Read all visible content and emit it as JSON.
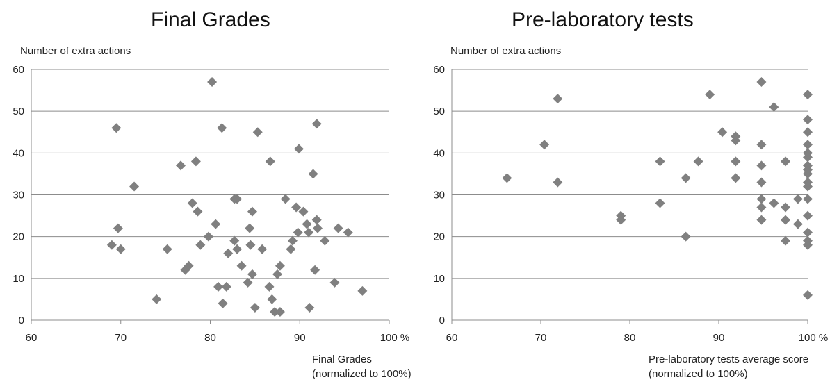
{
  "chart_data": [
    {
      "type": "scatter",
      "title": "Final Grades",
      "ylabel": "Number of extra actions",
      "xlabel_lines": [
        "Final Grades",
        "(normalized to 100%)"
      ],
      "xlim": [
        60,
        100
      ],
      "ylim": [
        0,
        60
      ],
      "x_ticks": [
        "60",
        "70",
        "80",
        "90",
        "100 %"
      ],
      "y_ticks": [
        "0",
        "10",
        "20",
        "30",
        "40",
        "50",
        "60"
      ],
      "grid": "horizontal",
      "marker": "diamond",
      "color": "#808080",
      "points": [
        {
          "x": 69.5,
          "y": 46
        },
        {
          "x": 69.7,
          "y": 22
        },
        {
          "x": 69.0,
          "y": 18
        },
        {
          "x": 70.0,
          "y": 17
        },
        {
          "x": 71.5,
          "y": 32
        },
        {
          "x": 74.0,
          "y": 5
        },
        {
          "x": 75.2,
          "y": 17
        },
        {
          "x": 76.7,
          "y": 37
        },
        {
          "x": 77.2,
          "y": 12
        },
        {
          "x": 77.6,
          "y": 13
        },
        {
          "x": 78.0,
          "y": 28
        },
        {
          "x": 78.4,
          "y": 38
        },
        {
          "x": 78.6,
          "y": 26
        },
        {
          "x": 78.9,
          "y": 18
        },
        {
          "x": 79.8,
          "y": 20
        },
        {
          "x": 80.2,
          "y": 57
        },
        {
          "x": 80.6,
          "y": 23
        },
        {
          "x": 80.9,
          "y": 8
        },
        {
          "x": 81.3,
          "y": 46
        },
        {
          "x": 81.4,
          "y": 4
        },
        {
          "x": 81.8,
          "y": 8
        },
        {
          "x": 82.0,
          "y": 16
        },
        {
          "x": 82.7,
          "y": 29
        },
        {
          "x": 82.7,
          "y": 19
        },
        {
          "x": 83.0,
          "y": 29
        },
        {
          "x": 83.0,
          "y": 17
        },
        {
          "x": 83.5,
          "y": 13
        },
        {
          "x": 84.2,
          "y": 9
        },
        {
          "x": 84.4,
          "y": 22
        },
        {
          "x": 84.5,
          "y": 18
        },
        {
          "x": 84.7,
          "y": 26
        },
        {
          "x": 84.7,
          "y": 11
        },
        {
          "x": 85.0,
          "y": 3
        },
        {
          "x": 85.3,
          "y": 45
        },
        {
          "x": 85.8,
          "y": 17
        },
        {
          "x": 86.6,
          "y": 8
        },
        {
          "x": 86.7,
          "y": 38
        },
        {
          "x": 86.9,
          "y": 5
        },
        {
          "x": 87.2,
          "y": 2
        },
        {
          "x": 87.5,
          "y": 11
        },
        {
          "x": 87.8,
          "y": 13
        },
        {
          "x": 87.8,
          "y": 2
        },
        {
          "x": 88.4,
          "y": 29
        },
        {
          "x": 89.0,
          "y": 17
        },
        {
          "x": 89.2,
          "y": 19
        },
        {
          "x": 89.6,
          "y": 27
        },
        {
          "x": 89.8,
          "y": 21
        },
        {
          "x": 89.9,
          "y": 41
        },
        {
          "x": 90.4,
          "y": 26
        },
        {
          "x": 90.8,
          "y": 23
        },
        {
          "x": 91.0,
          "y": 21
        },
        {
          "x": 91.1,
          "y": 3
        },
        {
          "x": 91.5,
          "y": 35
        },
        {
          "x": 91.7,
          "y": 12
        },
        {
          "x": 91.9,
          "y": 24
        },
        {
          "x": 91.9,
          "y": 47
        },
        {
          "x": 92.0,
          "y": 22
        },
        {
          "x": 92.8,
          "y": 19
        },
        {
          "x": 93.9,
          "y": 9
        },
        {
          "x": 94.3,
          "y": 22
        },
        {
          "x": 95.4,
          "y": 21
        },
        {
          "x": 97.0,
          "y": 7
        }
      ]
    },
    {
      "type": "scatter",
      "title": "Pre-laboratory tests",
      "ylabel": "Number of extra actions",
      "xlabel_lines": [
        "Pre-laboratory tests average score",
        "(normalized to 100%)"
      ],
      "xlim": [
        60,
        100
      ],
      "ylim": [
        0,
        60
      ],
      "x_ticks": [
        "60",
        "70",
        "80",
        "90",
        "100 %"
      ],
      "y_ticks": [
        "0",
        "10",
        "20",
        "30",
        "40",
        "50",
        "60"
      ],
      "grid": "horizontal",
      "marker": "diamond",
      "color": "#808080",
      "points": [
        {
          "x": 66.2,
          "y": 34
        },
        {
          "x": 70.4,
          "y": 42
        },
        {
          "x": 71.9,
          "y": 53
        },
        {
          "x": 71.9,
          "y": 33
        },
        {
          "x": 79.0,
          "y": 25
        },
        {
          "x": 79.0,
          "y": 24
        },
        {
          "x": 83.4,
          "y": 38
        },
        {
          "x": 83.4,
          "y": 28
        },
        {
          "x": 86.3,
          "y": 34
        },
        {
          "x": 86.3,
          "y": 20
        },
        {
          "x": 87.7,
          "y": 38
        },
        {
          "x": 89.0,
          "y": 54
        },
        {
          "x": 90.4,
          "y": 45
        },
        {
          "x": 91.9,
          "y": 44
        },
        {
          "x": 91.9,
          "y": 43
        },
        {
          "x": 91.9,
          "y": 38
        },
        {
          "x": 91.9,
          "y": 34
        },
        {
          "x": 94.8,
          "y": 57
        },
        {
          "x": 94.8,
          "y": 42
        },
        {
          "x": 94.8,
          "y": 37
        },
        {
          "x": 94.8,
          "y": 33
        },
        {
          "x": 94.8,
          "y": 29
        },
        {
          "x": 94.8,
          "y": 27
        },
        {
          "x": 94.8,
          "y": 24
        },
        {
          "x": 96.2,
          "y": 51
        },
        {
          "x": 96.2,
          "y": 28
        },
        {
          "x": 97.5,
          "y": 38
        },
        {
          "x": 97.5,
          "y": 27
        },
        {
          "x": 97.5,
          "y": 24
        },
        {
          "x": 97.5,
          "y": 19
        },
        {
          "x": 98.9,
          "y": 29
        },
        {
          "x": 98.9,
          "y": 23
        },
        {
          "x": 100,
          "y": 54
        },
        {
          "x": 100,
          "y": 48
        },
        {
          "x": 100,
          "y": 45
        },
        {
          "x": 100,
          "y": 42
        },
        {
          "x": 100,
          "y": 40
        },
        {
          "x": 100,
          "y": 39
        },
        {
          "x": 100,
          "y": 37
        },
        {
          "x": 100,
          "y": 36
        },
        {
          "x": 100,
          "y": 35
        },
        {
          "x": 100,
          "y": 33
        },
        {
          "x": 100,
          "y": 32
        },
        {
          "x": 100,
          "y": 29
        },
        {
          "x": 100,
          "y": 25
        },
        {
          "x": 100,
          "y": 21
        },
        {
          "x": 100,
          "y": 19
        },
        {
          "x": 100,
          "y": 18
        },
        {
          "x": 100,
          "y": 6
        }
      ]
    }
  ]
}
